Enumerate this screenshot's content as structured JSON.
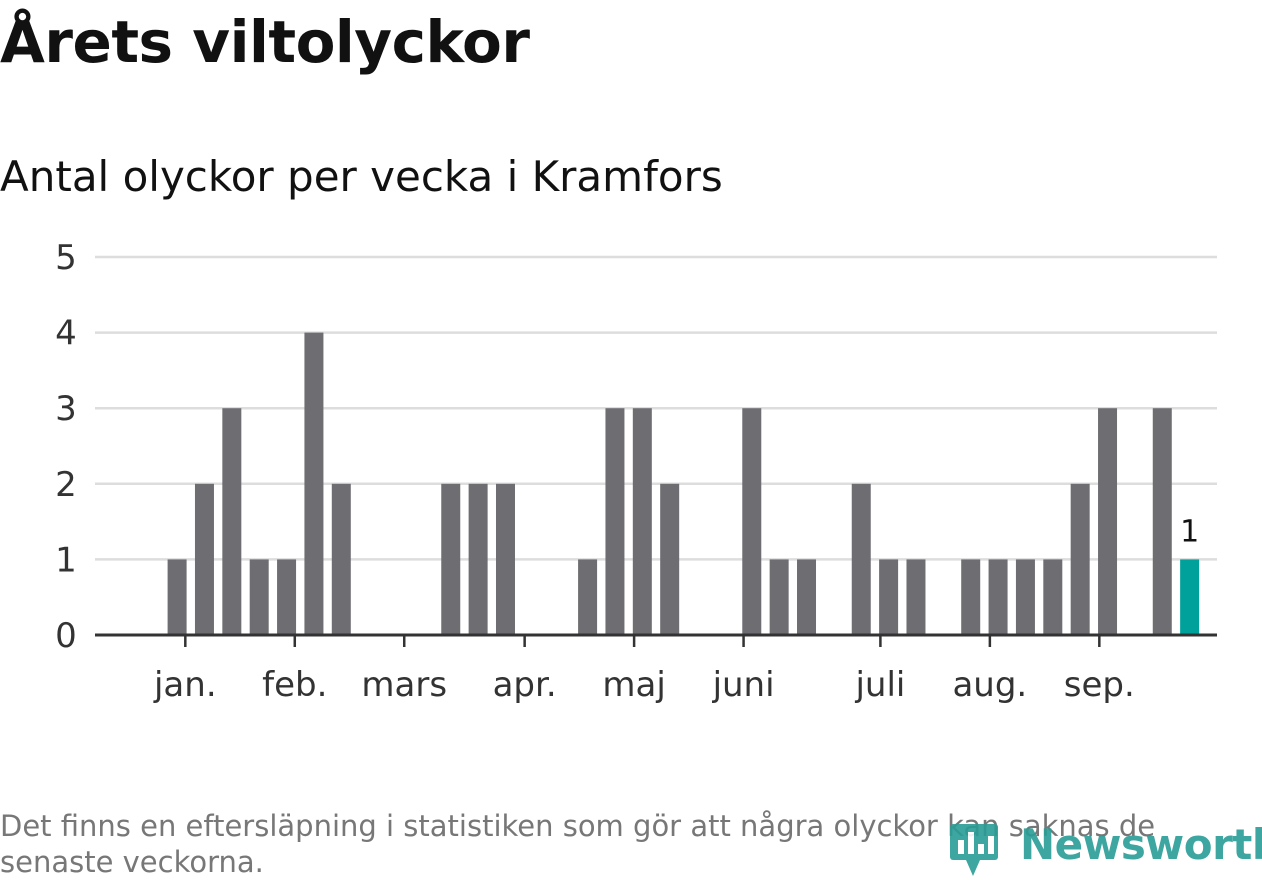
{
  "header": {
    "title": "Årets viltolyckor",
    "subtitle": "Antal olyckor per vecka i Kramfors"
  },
  "footnote": "Det finns en eftersläpning i statistiken som gör att några olyckor kan saknas de senaste veckorna.",
  "brand": {
    "name": "Newsworthy",
    "icon": "bar-chart-logo-icon"
  },
  "colors": {
    "bar": "#6e6d72",
    "highlight": "#00a19a",
    "grid": "#dddddd",
    "axis": "#333333",
    "text": "#111111",
    "brand": "#2a9d96"
  },
  "chart_data": {
    "type": "bar",
    "title": "Antal olyckor per vecka i Kramfors",
    "xlabel": "",
    "ylabel": "",
    "ylim": [
      0,
      5
    ],
    "yticks": [
      0,
      1,
      2,
      3,
      4,
      5
    ],
    "grid": true,
    "weeks": [
      1,
      2,
      3,
      4,
      5,
      6,
      7,
      8,
      9,
      10,
      11,
      12,
      13,
      14,
      15,
      16,
      17,
      18,
      19,
      20,
      21,
      22,
      23,
      24,
      25,
      26,
      27,
      28,
      29,
      30,
      31,
      32,
      33,
      34,
      35,
      36,
      37,
      38,
      39,
      40
    ],
    "values": [
      0,
      0,
      1,
      2,
      3,
      1,
      1,
      4,
      2,
      0,
      0,
      0,
      2,
      2,
      2,
      0,
      0,
      1,
      3,
      3,
      2,
      0,
      0,
      3,
      1,
      1,
      0,
      2,
      1,
      1,
      0,
      1,
      1,
      1,
      1,
      2,
      3,
      0,
      3,
      1
    ],
    "highlight_index": 39,
    "data_labels": [
      {
        "week": 40,
        "label": "1"
      }
    ],
    "month_ticks": [
      {
        "label": "jan.",
        "week": 3.3
      },
      {
        "label": "feb.",
        "week": 7.3
      },
      {
        "label": "mars",
        "week": 11.3
      },
      {
        "label": "apr.",
        "week": 15.7
      },
      {
        "label": "maj",
        "week": 19.7
      },
      {
        "label": "juni",
        "week": 23.7
      },
      {
        "label": "juli",
        "week": 28.7
      },
      {
        "label": "aug.",
        "week": 32.7
      },
      {
        "label": "sep.",
        "week": 36.7
      }
    ]
  }
}
